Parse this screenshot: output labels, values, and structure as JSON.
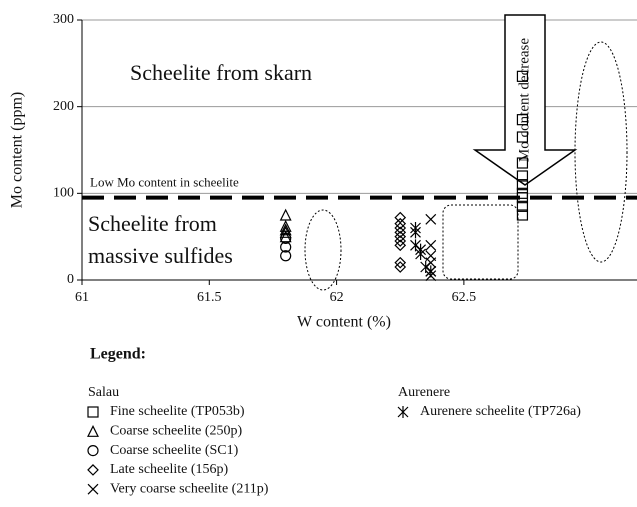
{
  "chart_data": {
    "type": "scatter",
    "xlabel": "W content (%)",
    "ylabel": "Mo content (ppm)",
    "xlim": [
      61,
      63.18
    ],
    "ylim": [
      0,
      300
    ],
    "xticks": [
      61,
      61.5,
      62,
      62.5
    ],
    "yticks": [
      0,
      100,
      200,
      300
    ],
    "grid": true,
    "threshold": {
      "value": 95,
      "label": "Low Mo content in scheelite"
    },
    "annotations": {
      "skarn": "Scheelite from skarn",
      "sulfides": [
        "Scheelite from",
        "massive sulfides"
      ],
      "arrow": "Mo content decrease"
    },
    "legend_title": "Legend:",
    "legend_groups": [
      "Salau",
      "Aurenere"
    ],
    "series": [
      {
        "name": "Fine scheelite (TP053b)",
        "group": "Salau",
        "marker": "square",
        "color": "#000000",
        "x": [
          62.73,
          62.73,
          62.73,
          62.73,
          62.73,
          62.73,
          62.73,
          62.73,
          62.73,
          62.73
        ],
        "values": [
          235,
          185,
          165,
          135,
          120,
          110,
          100,
          95,
          85,
          75
        ]
      },
      {
        "name": "Coarse scheelite (250p)",
        "group": "Salau",
        "marker": "triangle",
        "color": "#000000",
        "x": [
          61.8,
          61.8,
          61.8,
          61.8,
          61.8
        ],
        "values": [
          75,
          62,
          58,
          55,
          50
        ]
      },
      {
        "name": "Coarse scheelite (SC1)",
        "group": "Salau",
        "marker": "circle",
        "color": "#000000",
        "x": [
          61.8,
          61.8,
          61.8
        ],
        "values": [
          48,
          38,
          28
        ]
      },
      {
        "name": "Late scheelite (156p)",
        "group": "Salau",
        "marker": "diamond",
        "color": "#000000",
        "x": [
          62.25,
          62.25,
          62.25,
          62.25,
          62.25,
          62.25,
          62.25,
          62.25,
          62.25
        ],
        "values": [
          72,
          65,
          60,
          55,
          50,
          45,
          40,
          20,
          15
        ]
      },
      {
        "name": "Very coarse scheelite (211p)",
        "group": "Salau",
        "marker": "x",
        "color": "#000000",
        "x": [
          62.37,
          62.37,
          62.37,
          62.37,
          62.37,
          62.37
        ],
        "values": [
          70,
          40,
          28,
          20,
          10,
          5
        ]
      },
      {
        "name": "Aurenere scheelite (TP726a)",
        "group": "Aurenere",
        "marker": "asterisk",
        "color": "#000000",
        "x": [
          62.31,
          62.31,
          62.31,
          62.33,
          62.33,
          62.35,
          62.37
        ],
        "values": [
          60,
          55,
          40,
          35,
          30,
          15,
          10
        ]
      }
    ]
  }
}
